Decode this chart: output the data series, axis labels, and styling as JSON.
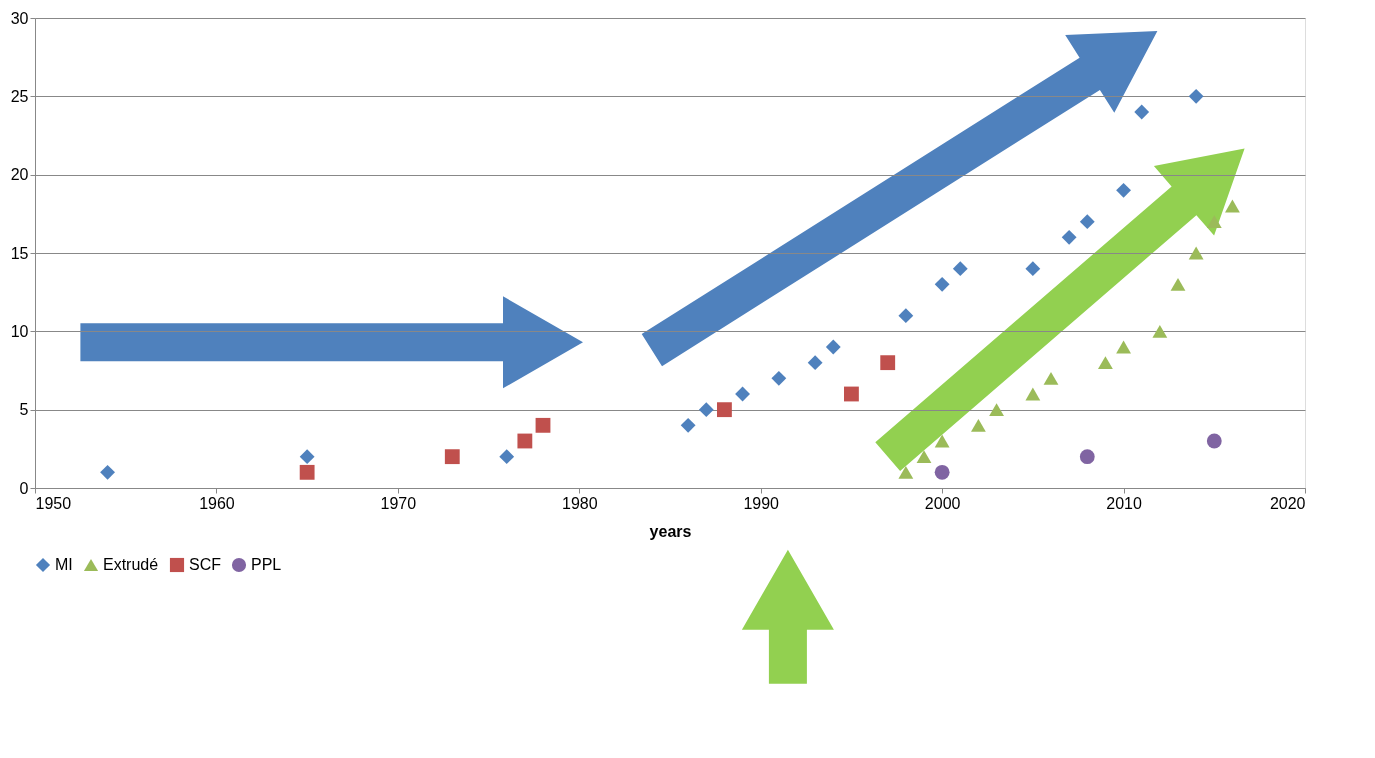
{
  "chart_data": {
    "type": "scatter",
    "xlabel": "years",
    "xlim": [
      1950,
      2020
    ],
    "xticks": [
      1950,
      1960,
      1970,
      1980,
      1990,
      2000,
      2010,
      2020
    ],
    "ylim": [
      0,
      30
    ],
    "yticks": [
      0,
      5,
      10,
      15,
      20,
      25,
      30
    ],
    "grid": "y",
    "legend": "bottom",
    "series": [
      {
        "name": "MI",
        "color": "#4f81bd",
        "marker": "diamond",
        "x": [
          1954,
          1965,
          1976,
          1986,
          1987,
          1989,
          1991,
          1993,
          1994,
          1998,
          2000,
          2001,
          2005,
          2007,
          2008,
          2010,
          2011,
          2014
        ],
        "values": [
          1,
          2,
          2,
          4,
          5,
          6,
          7,
          8,
          9,
          11,
          13,
          14,
          14,
          16,
          17,
          19,
          24,
          25
        ]
      },
      {
        "name": "Extrudé",
        "color": "#9bbb59",
        "marker": "triangle",
        "x": [
          1998,
          1999,
          2000,
          2002,
          2003,
          2005,
          2006,
          2009,
          2010,
          2012,
          2013,
          2014,
          2015,
          2016
        ],
        "values": [
          1,
          2,
          3,
          4,
          5,
          6,
          7,
          8,
          9,
          10,
          13,
          15,
          17,
          18
        ]
      },
      {
        "name": "SCF",
        "color": "#c0504d",
        "marker": "square",
        "x": [
          1965,
          1973,
          1977,
          1978,
          1988,
          1995,
          1997
        ],
        "values": [
          1,
          2,
          3,
          4,
          5,
          6,
          8
        ]
      },
      {
        "name": "PPL",
        "color": "#8064a2",
        "marker": "circle",
        "x": [
          2000,
          2008,
          2015
        ],
        "values": [
          1,
          2,
          3
        ]
      }
    ]
  }
}
